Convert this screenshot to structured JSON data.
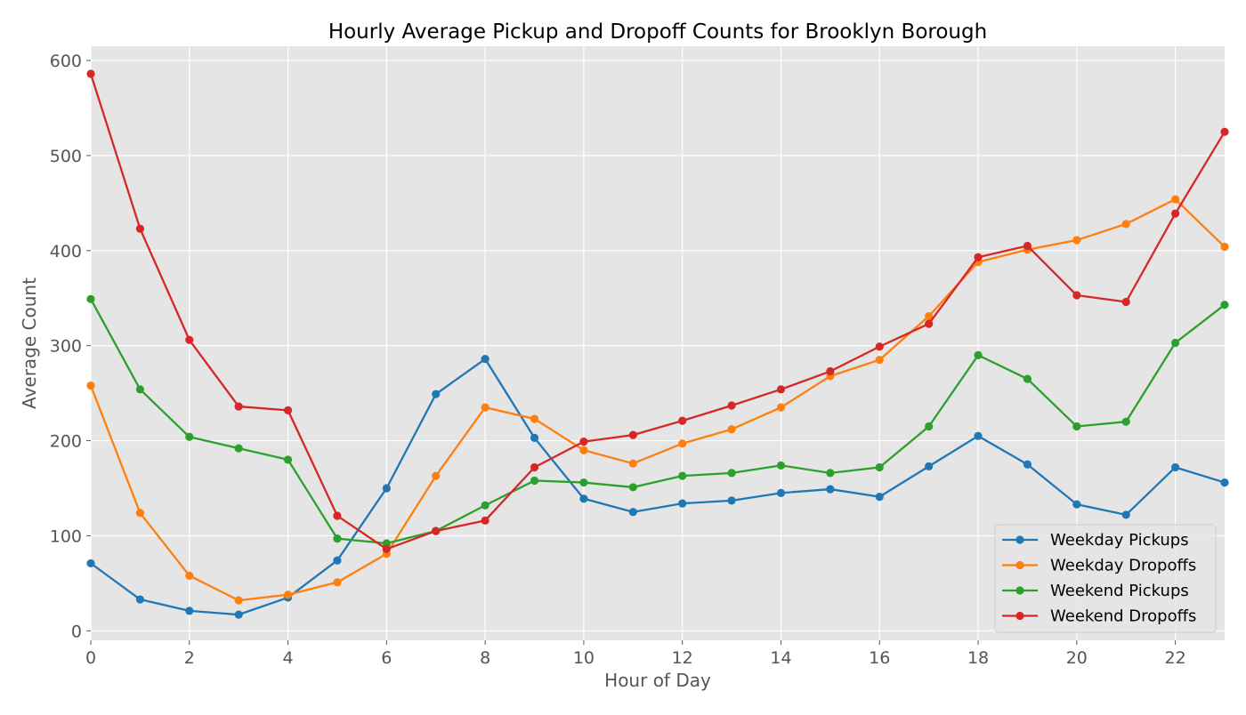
{
  "chart_data": {
    "type": "line",
    "title": "Hourly Average Pickup and Dropoff Counts for Brooklyn Borough",
    "xlabel": "Hour of Day",
    "ylabel": "Average Count",
    "x": [
      0,
      1,
      2,
      3,
      4,
      5,
      6,
      7,
      8,
      9,
      10,
      11,
      12,
      13,
      14,
      15,
      16,
      17,
      18,
      19,
      20,
      21,
      22,
      23
    ],
    "xlim": [
      0,
      23
    ],
    "ylim": [
      -10,
      615
    ],
    "xticks": [
      0,
      2,
      4,
      6,
      8,
      10,
      12,
      14,
      16,
      18,
      20,
      22
    ],
    "yticks": [
      0,
      100,
      200,
      300,
      400,
      500,
      600
    ],
    "grid": true,
    "legend_position": "lower-right",
    "series": [
      {
        "name": "Weekday Pickups",
        "color": "#1f77b4",
        "values": [
          71,
          33,
          21,
          17,
          35,
          74,
          150,
          249,
          286,
          203,
          139,
          125,
          134,
          137,
          145,
          149,
          141,
          173,
          205,
          175,
          133,
          122,
          172,
          156
        ]
      },
      {
        "name": "Weekday Dropoffs",
        "color": "#ff7f0e",
        "values": [
          258,
          124,
          58,
          32,
          38,
          51,
          81,
          163,
          235,
          223,
          190,
          176,
          197,
          212,
          235,
          268,
          285,
          331,
          388,
          401,
          411,
          428,
          454,
          404
        ]
      },
      {
        "name": "Weekend Pickups",
        "color": "#2ca02c",
        "values": [
          349,
          254,
          204,
          192,
          180,
          97,
          92,
          105,
          132,
          158,
          156,
          151,
          163,
          166,
          174,
          166,
          172,
          215,
          290,
          265,
          215,
          220,
          303,
          343
        ]
      },
      {
        "name": "Weekend Dropoffs",
        "color": "#d62728",
        "values": [
          586,
          423,
          306,
          236,
          232,
          121,
          86,
          105,
          116,
          172,
          199,
          206,
          221,
          237,
          254,
          273,
          299,
          323,
          393,
          405,
          353,
          346,
          439,
          525
        ]
      }
    ]
  }
}
